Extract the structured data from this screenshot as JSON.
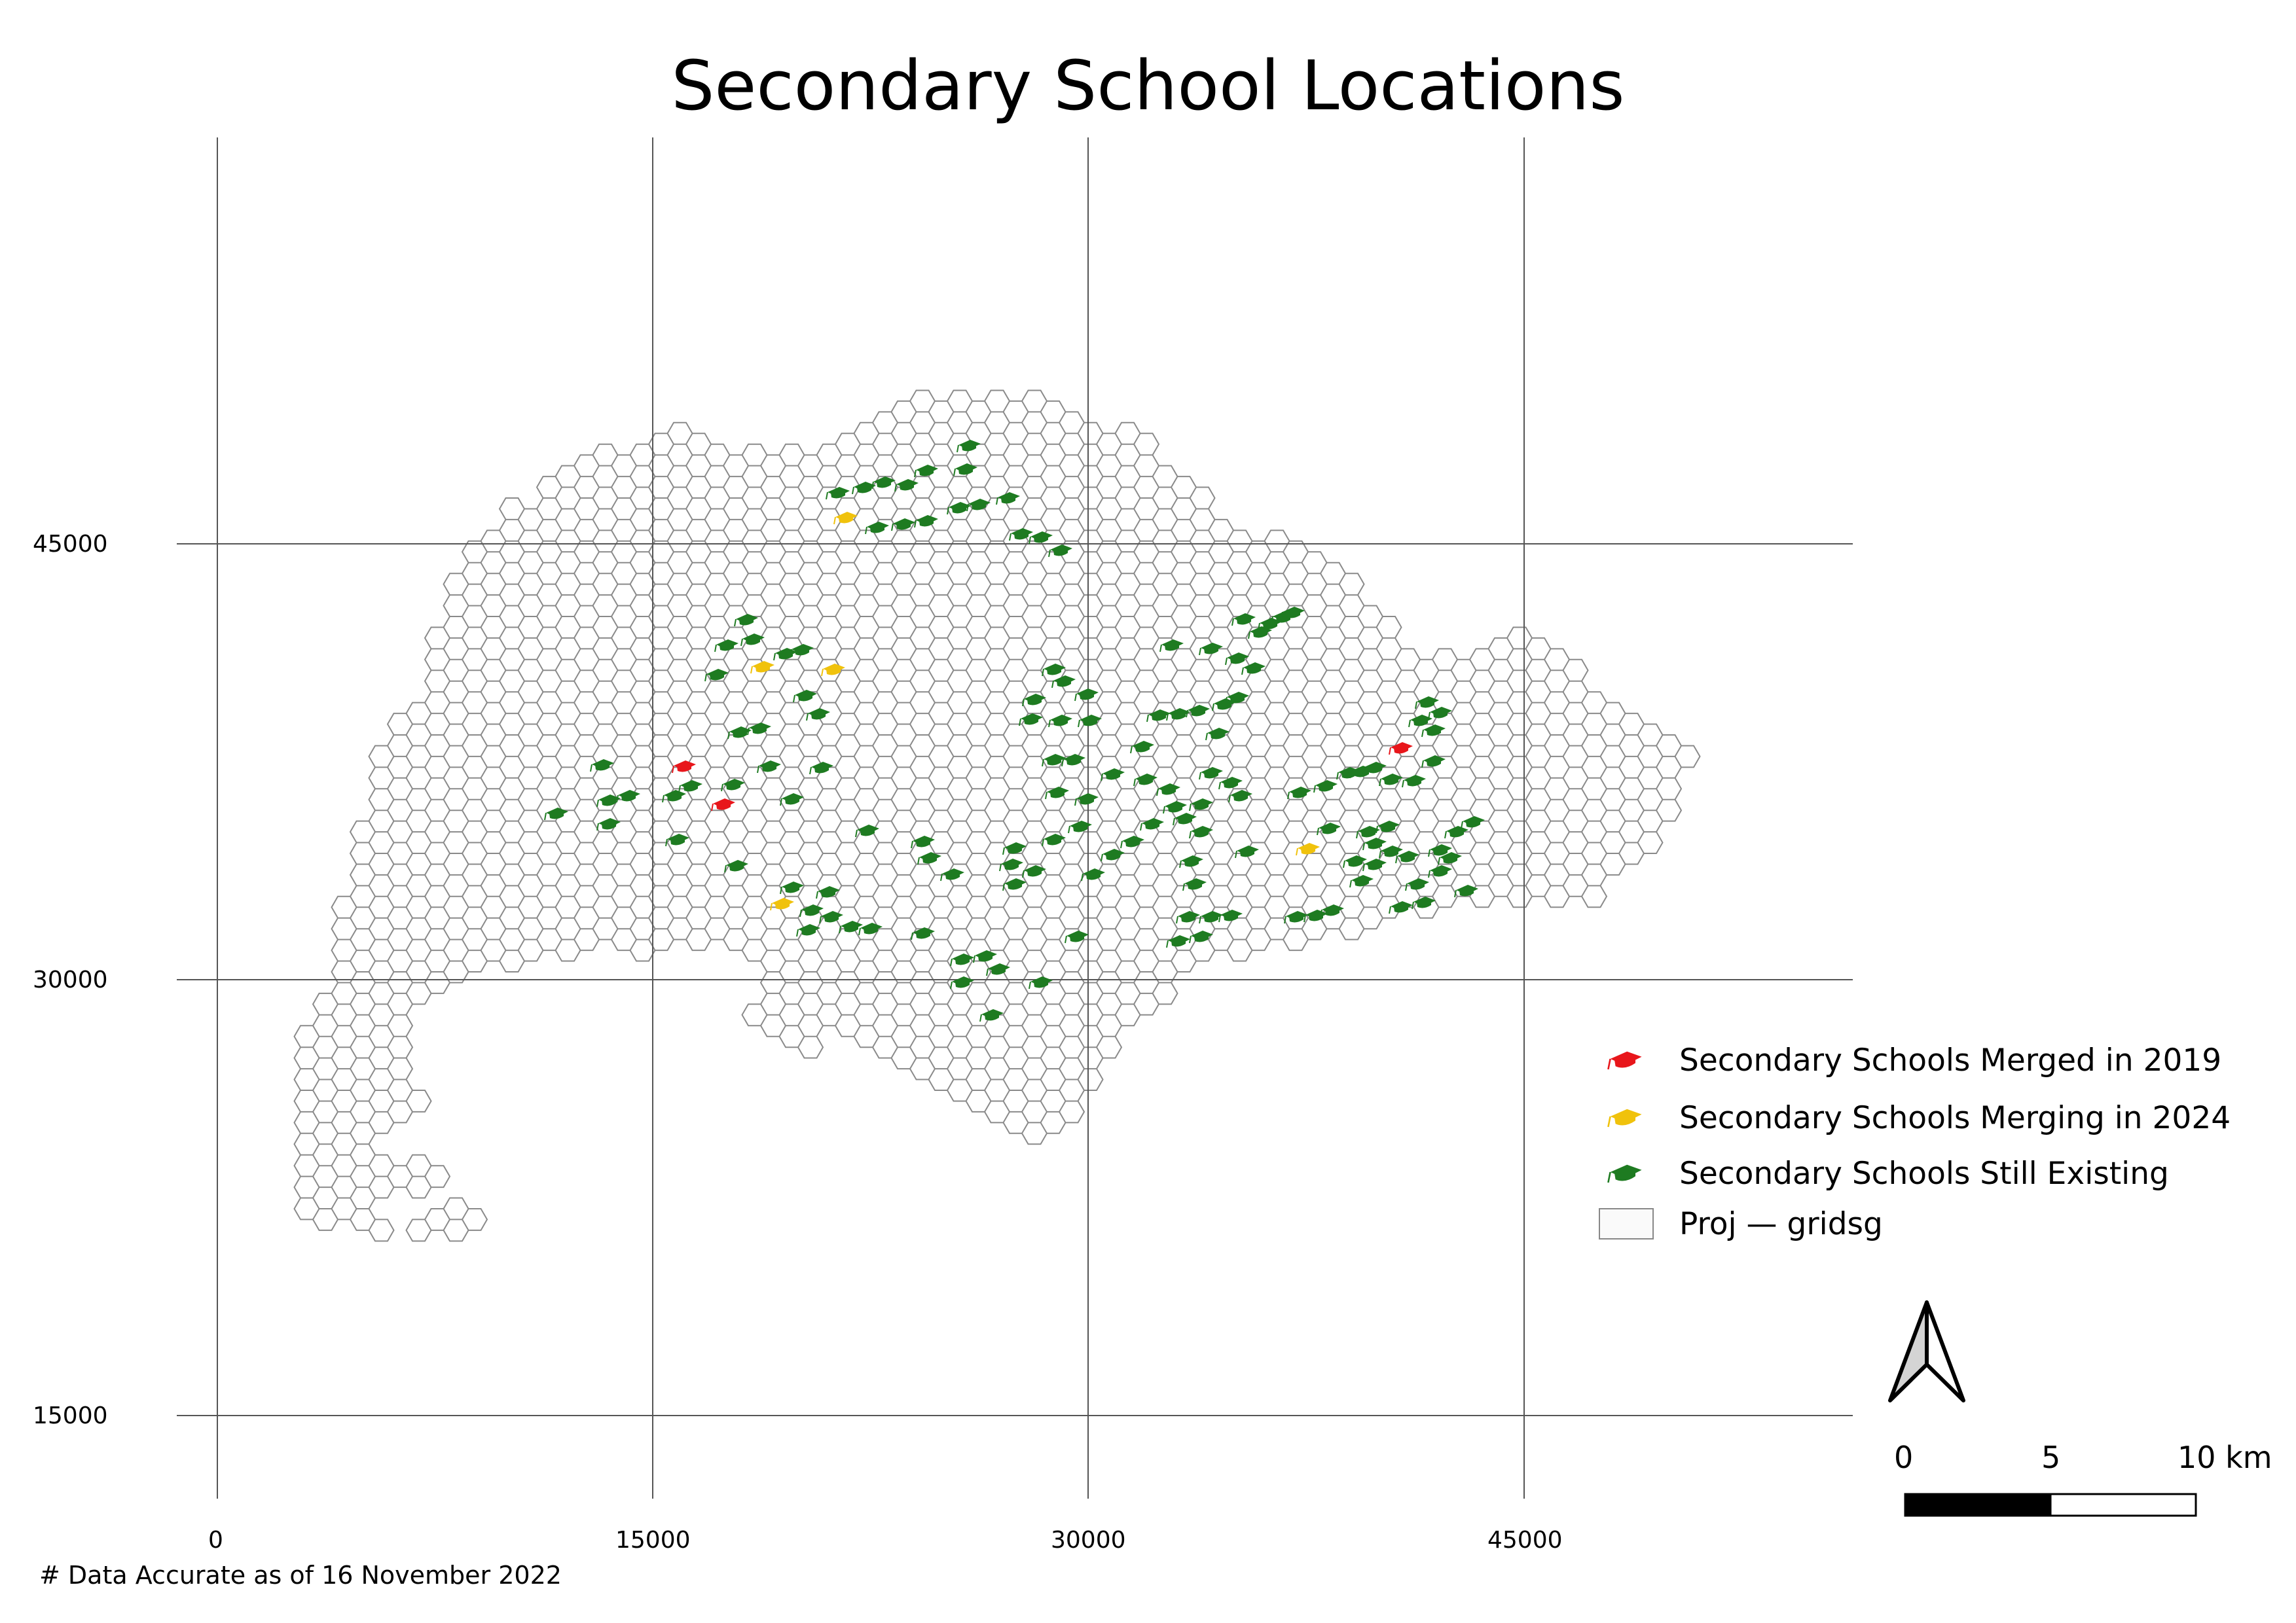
{
  "map": {
    "title": "Secondary School Locations",
    "note": "# Data Accurate as of 16 November 2022",
    "x_ticks": [
      "0",
      "15000",
      "30000",
      "45000"
    ],
    "y_ticks": [
      "45000",
      "30000",
      "15000"
    ],
    "grid": true,
    "colors": {
      "merged_2019": "#e8161b",
      "merging_2024": "#f0c20c",
      "still_existing": "#1e7b21",
      "hex_stroke": "#8a8a8a",
      "grid_line": "#555555"
    }
  },
  "legend": {
    "items": [
      {
        "label": "Secondary Schools Merged in 2019",
        "icon": "graduation-cap-icon",
        "color": "#e8161b"
      },
      {
        "label": "Secondary Schools Merging in 2024",
        "icon": "graduation-cap-icon",
        "color": "#f0c20c"
      },
      {
        "label": "Secondary Schools Still Existing",
        "icon": "graduation-cap-icon",
        "color": "#1e7b21"
      },
      {
        "label": "Proj — gridsg",
        "icon": "polygon-fill-icon",
        "color": "#ffffff"
      }
    ]
  },
  "scale_bar": {
    "labels": [
      "0",
      "5",
      "10 km"
    ]
  },
  "north_arrow": {
    "icon": "north-arrow-icon"
  }
}
